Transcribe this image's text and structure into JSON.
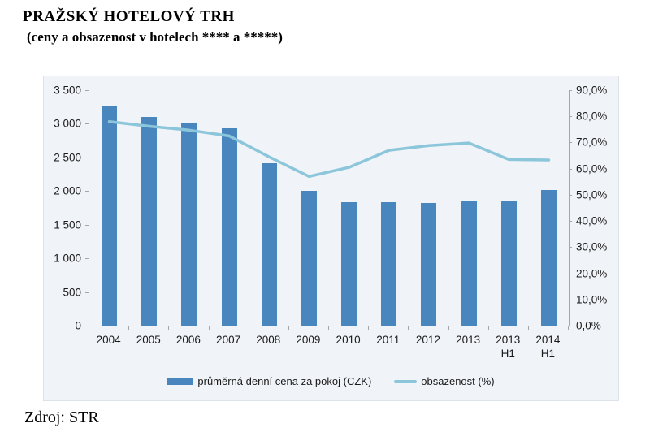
{
  "page": {
    "title": "PRAŽSKÝ HOTELOVÝ TRH",
    "subtitle": "(ceny a obsazenost v hotelech **** a *****)",
    "source": "Zdroj: STR"
  },
  "colors": {
    "bar": "#4a86be",
    "line": "#8cc6da",
    "plot_bg": "#f0f3f7",
    "axis": "#a6a6a6"
  },
  "legend": {
    "items": [
      {
        "label": "průměrná denní cena za pokoj (CZK)",
        "swatch": "bar",
        "color": "#4a86be"
      },
      {
        "label": "obsazenost (%)",
        "swatch": "line",
        "color": "#8cc6da"
      }
    ]
  },
  "chart_data": {
    "type": "bar",
    "subtype": "bar+line combo, dual axis",
    "title": "PRAŽSKÝ HOTELOVÝ TRH (ceny a obsazenost v hotelech **** a *****)",
    "categories": [
      "2004",
      "2005",
      "2006",
      "2007",
      "2008",
      "2009",
      "2010",
      "2011",
      "2012",
      "2013",
      "2013\nH1",
      "2014\nH1"
    ],
    "series": [
      {
        "name": "průměrná denní cena za pokoj (CZK)",
        "type": "bar",
        "axis": "left",
        "color": "#4a86be",
        "values": [
          3270,
          3100,
          3020,
          2930,
          2410,
          2000,
          1830,
          1835,
          1825,
          1845,
          1860,
          2020
        ]
      },
      {
        "name": "obsazenost (%)",
        "type": "line",
        "axis": "right",
        "color": "#8cc6da",
        "values": [
          78.0,
          76.2,
          74.7,
          72.5,
          64.5,
          57.0,
          60.5,
          67.0,
          68.8,
          69.8,
          63.5,
          63.3
        ]
      }
    ],
    "left_axis": {
      "min": 0,
      "max": 3500,
      "step": 500,
      "tick_labels": [
        "0",
        "500",
        "1 000",
        "1 500",
        "2 000",
        "2 500",
        "3 000",
        "3 500"
      ]
    },
    "right_axis": {
      "min": 0,
      "max": 90,
      "step": 10,
      "tick_labels": [
        "0,0%",
        "10,0%",
        "20,0%",
        "30,0%",
        "40,0%",
        "50,0%",
        "60,0%",
        "70,0%",
        "80,0%",
        "90,0%"
      ]
    },
    "grid": false,
    "legend_position": "bottom",
    "source": "Zdroj: STR"
  }
}
